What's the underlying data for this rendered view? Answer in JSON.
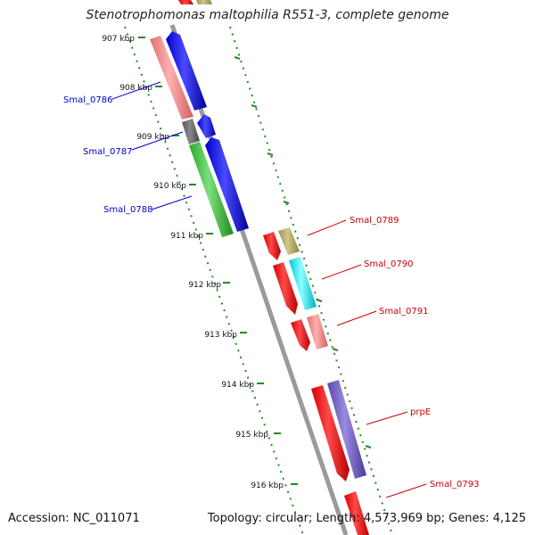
{
  "title": "Stenotrophomonas maltophilia R551-3, complete genome",
  "footer": {
    "accession": "Accession: NC_011071",
    "topology": "Topology: circular; Length: 4,573,969 bp; Genes: 4,125"
  },
  "ticks": [
    "907 kbp",
    "908 kbp",
    "909 kbp",
    "910 kbp",
    "911 kbp",
    "912 kbp",
    "913 kbp",
    "914 kbp",
    "915 kbp",
    "916 kbp"
  ],
  "labels": {
    "left": [
      "Smal_0786",
      "Smal_0787",
      "Smal_0788"
    ],
    "right": [
      "Smal_0789",
      "Smal_0790",
      "Smal_0791",
      "prpE",
      "Smal_0793"
    ]
  },
  "colors": {
    "left_label": "#0000cc",
    "right_label": "#cc0000",
    "tick": "#228b22",
    "backbone": "#808080"
  }
}
